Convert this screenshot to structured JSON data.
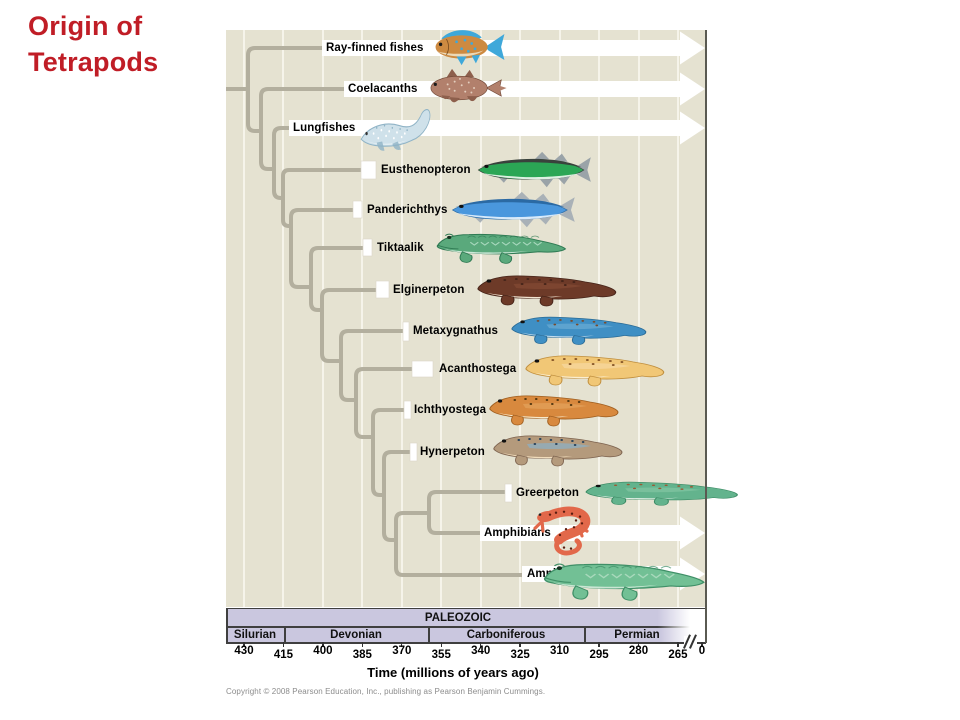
{
  "title": {
    "line1": "Origin of",
    "line2": "Tetrapods"
  },
  "tree": {
    "taxa": [
      {
        "name": "Ray-finned fishes",
        "status": "extant",
        "art": {
          "kind": "rayfin",
          "body": "#cd8a41",
          "accent": "#3fa8da",
          "belly": "#ecd9b8",
          "dark": "#7a4c1e",
          "spot": "#3fa8da"
        }
      },
      {
        "name": "Coelacanths",
        "status": "extant",
        "art": {
          "kind": "coelacanth",
          "body": "#b2806c",
          "accent": "#8d5f4c",
          "belly": "#dcc0ac",
          "dark": "#6f4635",
          "spot": "#e3cdbd"
        }
      },
      {
        "name": "Lungfishes",
        "status": "extant",
        "art": {
          "kind": "lungfish",
          "body": "#cfe1ea",
          "accent": "#8fb3c6",
          "belly": "#eef5f7",
          "dark": "#7fa8bc",
          "spot": "#ffffff"
        }
      },
      {
        "name": "Eusthenopteron",
        "status": "extinct",
        "art": {
          "kind": "fishlong",
          "body": "#2ba655",
          "accent": "#9aa3a8",
          "belly": "#ddf0e2",
          "dark": "#39423c",
          "spot": "#1b7a3c"
        }
      },
      {
        "name": "Panderichthys",
        "status": "extinct",
        "art": {
          "kind": "fishlong",
          "body": "#4a97dd",
          "accent": "#a9b1b7",
          "belly": "#d8eafa",
          "dark": "#2b6aa4",
          "spot": "#2b6aa4"
        }
      },
      {
        "name": "Tiktaalik",
        "status": "extinct",
        "art": {
          "kind": "croc",
          "body": "#5aa97c",
          "accent": "#a8d8bd",
          "belly": "#cde8d8",
          "dark": "#2f7a53",
          "spot": "#a8d8bd"
        }
      },
      {
        "name": "Elginerpeton",
        "status": "extinct",
        "art": {
          "kind": "tetrapod",
          "body": "#6d3a28",
          "accent": "#8a4e36",
          "belly": "#f2e4d1",
          "dark": "#47251a",
          "spot": "#47251a"
        }
      },
      {
        "name": "Metaxygnathus",
        "status": "extinct",
        "art": {
          "kind": "tetrapod",
          "body": "#3f8fc4",
          "accent": "#76b4d9",
          "belly": "#c3dcee",
          "dark": "#2a6b96",
          "spot": "#7a4a2a"
        }
      },
      {
        "name": "Acanthostega",
        "status": "extinct",
        "art": {
          "kind": "tetrapod",
          "body": "#f1c776",
          "accent": "#f7ddad",
          "belly": "#fbeed0",
          "dark": "#c08f3e",
          "spot": "#8a5a2a"
        }
      },
      {
        "name": "Ichthyostega",
        "status": "extinct",
        "art": {
          "kind": "tetrapod",
          "body": "#d8893e",
          "accent": "#e8a964",
          "belly": "#f8e9ca",
          "dark": "#a05f20",
          "spot": "#50350f"
        }
      },
      {
        "name": "Hynerpeton",
        "status": "extinct",
        "art": {
          "kind": "tetrapod",
          "body": "#b49a7c",
          "accent": "#7fb8dc",
          "belly": "#f1dcbb",
          "dark": "#7e6450",
          "spot": "#26415a"
        }
      },
      {
        "name": "Greerpeton",
        "status": "extinct",
        "art": {
          "kind": "tetrapod",
          "body": "#63b38d",
          "accent": "#8ccbaa",
          "belly": "#eaf4ec",
          "dark": "#3b8a64",
          "spot": "#9a5a34"
        }
      },
      {
        "name": "Amphibians",
        "status": "extant",
        "art": {
          "kind": "salamander",
          "body": "#e2684a",
          "accent": "#ef8f74",
          "belly": "#f6cab6",
          "dark": "#a83a22",
          "spot": "#5a1d10"
        }
      },
      {
        "name": "Amniotes",
        "status": "extant",
        "art": {
          "kind": "croc",
          "body": "#72c095",
          "accent": "#a9d9bc",
          "belly": "#c9e6d3",
          "dark": "#3f8f67",
          "spot": "#4a9a70"
        }
      }
    ]
  },
  "timeline": {
    "era": "PALEOZOIC",
    "periods": [
      {
        "name": "Silurian"
      },
      {
        "name": "Devonian"
      },
      {
        "name": "Carboniferous"
      },
      {
        "name": "Permian"
      }
    ],
    "ticks": [
      430,
      415,
      400,
      385,
      370,
      355,
      340,
      325,
      310,
      295,
      280,
      265
    ],
    "tick_end": 0,
    "axis_label": "Time (millions of years ago)"
  },
  "footer": {
    "copyright": "Copyright © 2008 Pearson Education, Inc., publishing as Pearson Benjamin Cummings."
  },
  "colors": {
    "title_red": "#c01d26",
    "panel_beige": "#e5e2d1",
    "branch_gray": "#b3af9e",
    "band_lavender": "#cac7df",
    "arrow_white": "#ffffff"
  }
}
